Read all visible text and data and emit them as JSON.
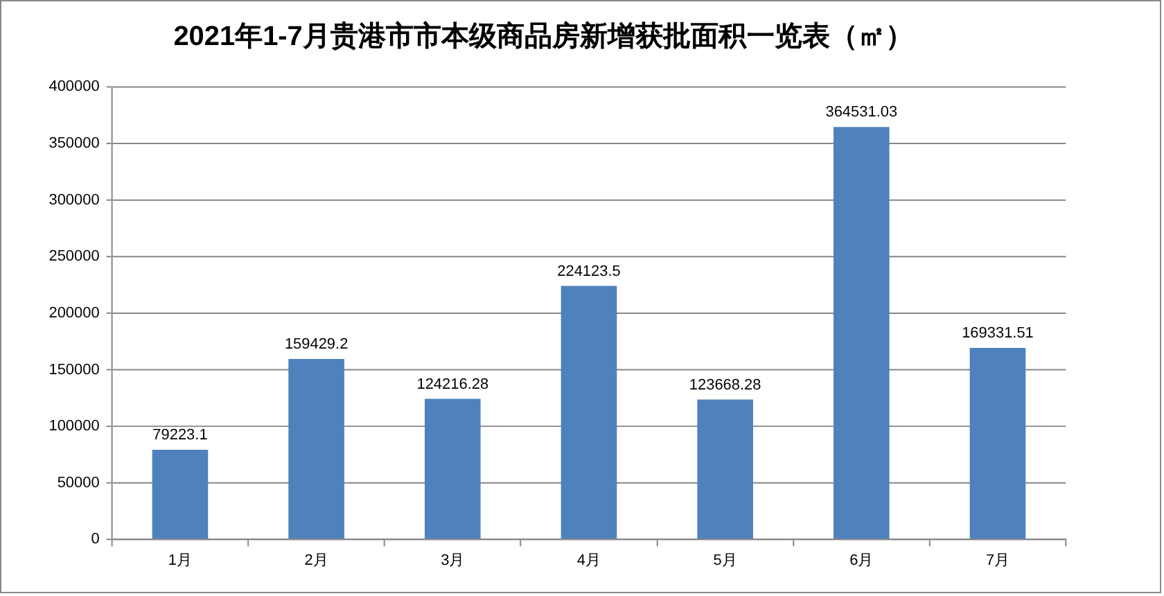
{
  "chart_data": {
    "type": "bar",
    "title": "2021年1-7月贵港市市本级商品房新增获批面积一览表（㎡）",
    "categories": [
      "1月",
      "2月",
      "3月",
      "4月",
      "5月",
      "6月",
      "7月"
    ],
    "values": [
      79223.1,
      159429.2,
      124216.28,
      224123.5,
      123668.28,
      364531.03,
      169331.51
    ],
    "color": "#4f81bd",
    "ylim": [
      0,
      400000
    ],
    "yticks": [
      0,
      50000,
      100000,
      150000,
      200000,
      250000,
      300000,
      350000,
      400000
    ],
    "grid": "y",
    "legend": false,
    "data_labels": true
  }
}
